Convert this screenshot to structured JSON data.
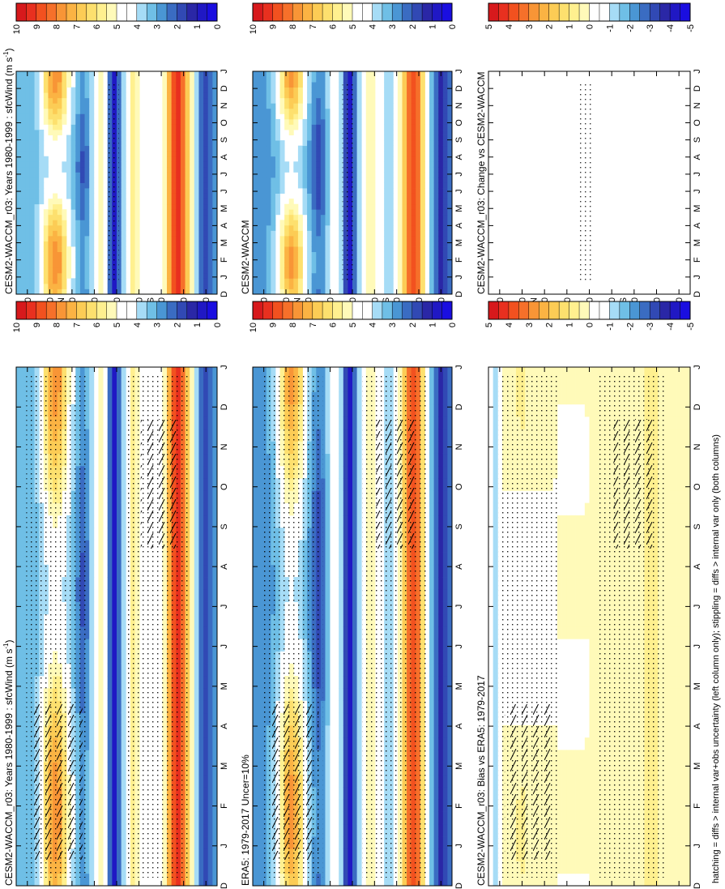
{
  "figure": {
    "footer": "hatching = diffs > internal var+obs uncertainty (left column only); stippling = diffs > internal var only (both columns)"
  },
  "colorbars": {
    "absolute": {
      "labels": [
        "10",
        "9",
        "8",
        "7",
        "6",
        "5",
        "4",
        "3",
        "2",
        "1",
        "0"
      ],
      "colors": [
        "#d7191c",
        "#e8301f",
        "#f2511f",
        "#f6702a",
        "#f89536",
        "#fbb343",
        "#fccc55",
        "#fde06e",
        "#fff08f",
        "#fffab9",
        "#ffffff",
        "#ffffff",
        "#a6dcf6",
        "#6fbfe6",
        "#4a96d4",
        "#3a6cc2",
        "#3149b4",
        "#2a27a6",
        "#2018c4",
        "#1a0ee0"
      ]
    },
    "difference": {
      "labels": [
        "5",
        "4",
        "3",
        "2",
        "1",
        "0",
        "-1",
        "-2",
        "-3",
        "-4",
        "-5"
      ],
      "colors": [
        "#d7191c",
        "#e8301f",
        "#f2511f",
        "#f6702a",
        "#f89536",
        "#fbb343",
        "#fccc55",
        "#fde06e",
        "#fff08f",
        "#fffab9",
        "#ffffff",
        "#ffffff",
        "#a6dcf6",
        "#6fbfe6",
        "#4a96d4",
        "#3a6cc2",
        "#3149b4",
        "#2a27a6",
        "#2018c4",
        "#1a0ee0"
      ]
    }
  },
  "panels": [
    {
      "id": "left-top",
      "title": "CESM2-WACCM_r03: Years 1980-1999 : sfcWind (m s",
      "superscript": "-1",
      "title_end": ")"
    },
    {
      "id": "right-top",
      "title": "CESM2-WACCM_r03: Years 1980-1999 : sfcWind (m s",
      "superscript": "-1",
      "title_end": ")"
    },
    {
      "id": "left-mid",
      "title": "ERA5: 1979-2017 Uncer=10%",
      "superscript": "",
      "title_end": ""
    },
    {
      "id": "right-mid",
      "title": "CESM2-WACCM",
      "superscript": "",
      "title_end": ""
    },
    {
      "id": "left-bot",
      "title": "CESM2-WACCM_r03: Bias vs ERA5: 1979-2017",
      "superscript": "",
      "title_end": ""
    },
    {
      "id": "right-bot",
      "title": "CESM2-WACCM_r03: Change vs CESM2-WACCM",
      "superscript": "",
      "title_end": ""
    }
  ],
  "chart_data": {
    "type": "heatmap",
    "x_axis": {
      "ticks": [
        "D",
        "J",
        "F",
        "M",
        "A",
        "M",
        "J",
        "J",
        "A",
        "S",
        "O",
        "N",
        "D",
        "J"
      ]
    },
    "y_axis": {
      "ticks": [
        "80",
        "60",
        "40",
        "20",
        "0",
        "20",
        "40",
        "60",
        "80"
      ],
      "unit_north": "°N",
      "unit_south": "°S"
    },
    "variable": "sfcWind",
    "unit": "m s-1"
  }
}
